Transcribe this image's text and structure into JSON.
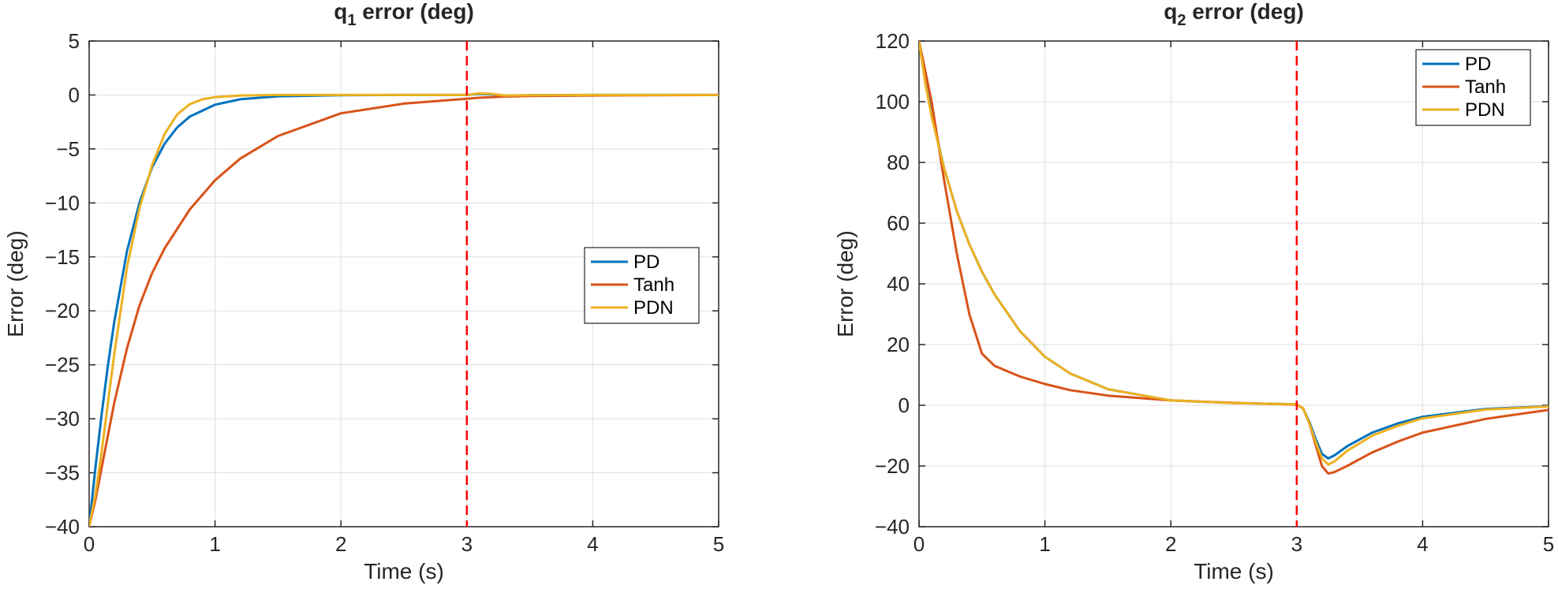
{
  "chart_data": [
    {
      "type": "line",
      "title_main": "q",
      "title_sub": "1",
      "title_rest": " error (deg)",
      "xlabel": "Time (s)",
      "ylabel": "Error (deg)",
      "xlim": [
        0,
        5
      ],
      "ylim": [
        -40,
        5
      ],
      "xticks": [
        0,
        1,
        2,
        3,
        4,
        5
      ],
      "yticks": [
        -40,
        -35,
        -30,
        -25,
        -20,
        -15,
        -10,
        -5,
        0,
        5
      ],
      "xtick_labels": [
        "0",
        "1",
        "2",
        "3",
        "4",
        "5"
      ],
      "ytick_labels": [
        "−40",
        "−35",
        "−30",
        "−25",
        "−20",
        "−15",
        "−10",
        "−5",
        "0",
        "5"
      ],
      "grid": true,
      "legend_position": "center-right",
      "vline": {
        "x": 3,
        "color": "#ff0000",
        "style": "dashed"
      },
      "series": [
        {
          "name": "PD",
          "color": "#0072BD",
          "x": [
            0,
            0.05,
            0.1,
            0.15,
            0.2,
            0.3,
            0.4,
            0.5,
            0.6,
            0.7,
            0.8,
            1.0,
            1.2,
            1.5,
            2.0,
            2.5,
            3.0,
            3.1,
            3.2,
            3.3,
            3.5,
            4.0,
            5.0
          ],
          "y": [
            -40,
            -34.5,
            -29.5,
            -25,
            -21,
            -14.5,
            -10,
            -6.7,
            -4.5,
            -3.0,
            -2.0,
            -0.9,
            -0.4,
            -0.12,
            -0.02,
            0,
            0,
            0.1,
            0.05,
            -0.05,
            -0.02,
            0,
            0
          ]
        },
        {
          "name": "Tanh",
          "color": "#D95319",
          "x": [
            0,
            0.05,
            0.1,
            0.15,
            0.2,
            0.3,
            0.4,
            0.5,
            0.6,
            0.8,
            1.0,
            1.2,
            1.5,
            2.0,
            2.5,
            3.0,
            3.1,
            3.2,
            3.3,
            3.5,
            4.0,
            4.5,
            5.0
          ],
          "y": [
            -40,
            -37.5,
            -34.5,
            -31.5,
            -28.5,
            -23.5,
            -19.5,
            -16.5,
            -14.2,
            -10.6,
            -7.9,
            -5.9,
            -3.8,
            -1.7,
            -0.8,
            -0.35,
            -0.25,
            -0.2,
            -0.15,
            -0.1,
            -0.05,
            -0.02,
            0
          ]
        },
        {
          "name": "PDN",
          "color": "#EDB120",
          "x": [
            0,
            0.05,
            0.1,
            0.15,
            0.2,
            0.3,
            0.4,
            0.5,
            0.6,
            0.7,
            0.8,
            0.9,
            1.0,
            1.2,
            1.5,
            2.0,
            3.0,
            3.1,
            3.2,
            3.3,
            3.5,
            4.0,
            5.0
          ],
          "y": [
            -40,
            -37,
            -33,
            -28.5,
            -24,
            -16,
            -10.5,
            -6.5,
            -3.6,
            -1.8,
            -0.85,
            -0.4,
            -0.2,
            -0.05,
            0,
            0,
            0,
            0.15,
            0.1,
            -0.05,
            -0.02,
            0,
            0
          ]
        }
      ]
    },
    {
      "type": "line",
      "title_main": "q",
      "title_sub": "2",
      "title_rest": " error (deg)",
      "xlabel": "Time (s)",
      "ylabel": "Error (deg)",
      "xlim": [
        0,
        5
      ],
      "ylim": [
        -40,
        120
      ],
      "xticks": [
        0,
        1,
        2,
        3,
        4,
        5
      ],
      "yticks": [
        -40,
        -20,
        0,
        20,
        40,
        60,
        80,
        100,
        120
      ],
      "xtick_labels": [
        "0",
        "1",
        "2",
        "3",
        "4",
        "5"
      ],
      "ytick_labels": [
        "−40",
        "−20",
        "0",
        "20",
        "40",
        "60",
        "80",
        "100",
        "120"
      ],
      "grid": true,
      "legend_position": "top-right",
      "vline": {
        "x": 3,
        "color": "#ff0000",
        "style": "dashed"
      },
      "series": [
        {
          "name": "PD",
          "color": "#0072BD",
          "x": [
            0,
            0.05,
            0.1,
            0.2,
            0.3,
            0.4,
            0.5,
            0.6,
            0.8,
            1.0,
            1.2,
            1.5,
            2.0,
            2.5,
            3.0,
            3.05,
            3.1,
            3.15,
            3.2,
            3.25,
            3.3,
            3.4,
            3.6,
            3.8,
            4.0,
            4.5,
            5.0
          ],
          "y": [
            120,
            107,
            96,
            78,
            64,
            53,
            44,
            36.5,
            24.5,
            16,
            10.5,
            5.3,
            1.6,
            0.7,
            0.3,
            -1,
            -5.5,
            -11,
            -16,
            -17.5,
            -16.5,
            -13.5,
            -9,
            -6,
            -3.8,
            -1.2,
            -0.3
          ]
        },
        {
          "name": "Tanh",
          "color": "#D95319",
          "x": [
            0,
            0.1,
            0.2,
            0.3,
            0.4,
            0.5,
            0.55,
            0.6,
            0.8,
            1.0,
            1.2,
            1.5,
            2.0,
            2.5,
            3.0,
            3.05,
            3.1,
            3.15,
            3.2,
            3.25,
            3.3,
            3.4,
            3.6,
            3.8,
            4.0,
            4.5,
            5.0
          ],
          "y": [
            120,
            100,
            74,
            50,
            30,
            17,
            15,
            13,
            9.5,
            7,
            5,
            3.2,
            1.6,
            0.8,
            0.2,
            -1,
            -6,
            -13,
            -20,
            -22.5,
            -22,
            -20,
            -15.5,
            -12,
            -9,
            -4.5,
            -1.5
          ]
        },
        {
          "name": "PDN",
          "color": "#EDB120",
          "x": [
            0,
            0.05,
            0.1,
            0.2,
            0.3,
            0.4,
            0.5,
            0.6,
            0.8,
            1.0,
            1.2,
            1.5,
            2.0,
            2.5,
            3.0,
            3.05,
            3.1,
            3.15,
            3.2,
            3.25,
            3.3,
            3.4,
            3.6,
            3.8,
            4.0,
            4.5,
            5.0
          ],
          "y": [
            120,
            106,
            95,
            78,
            64,
            53,
            44,
            36.5,
            24.5,
            16,
            10.5,
            5.3,
            1.6,
            0.7,
            0.3,
            -1,
            -6,
            -12,
            -17.5,
            -19.5,
            -18.5,
            -15,
            -10,
            -6.8,
            -4.3,
            -1.4,
            -0.4
          ]
        }
      ]
    }
  ]
}
